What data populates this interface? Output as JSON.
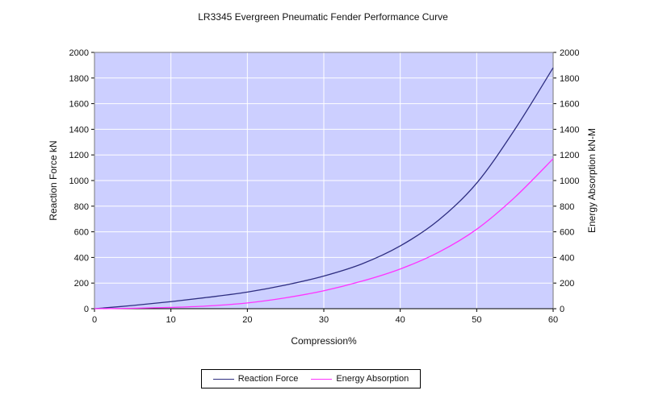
{
  "chart_data": {
    "type": "line",
    "title": "LR3345 Evergreen Pneumatic Fender Performance Curve",
    "xlabel": "Compression%",
    "ylabel_left": "Reaction Force kN",
    "ylabel_right": "Energy Absorption kN-M",
    "xlim": [
      0,
      60
    ],
    "ylim_left": [
      0,
      2000
    ],
    "ylim_right": [
      0,
      2000
    ],
    "x_ticks": [
      0,
      10,
      20,
      30,
      40,
      50,
      60
    ],
    "y_ticks": [
      0,
      200,
      400,
      600,
      800,
      1000,
      1200,
      1400,
      1600,
      1800,
      2000
    ],
    "grid": true,
    "legend_position": "bottom-center",
    "plot_background": "#cccfff",
    "series": [
      {
        "name": "Reaction Force",
        "axis": "left",
        "color": "#2e2e80",
        "x": [
          0,
          5,
          10,
          15,
          20,
          25,
          30,
          35,
          40,
          45,
          50,
          55,
          60
        ],
        "y": [
          0,
          25,
          55,
          90,
          130,
          185,
          255,
          350,
          490,
          690,
          980,
          1400,
          1880
        ]
      },
      {
        "name": "Energy Absorption",
        "axis": "right",
        "color": "#ff33ff",
        "x": [
          0,
          5,
          10,
          15,
          20,
          25,
          30,
          35,
          40,
          45,
          50,
          55,
          60
        ],
        "y": [
          0,
          3,
          10,
          22,
          45,
          85,
          140,
          215,
          310,
          440,
          620,
          870,
          1170
        ]
      }
    ]
  }
}
